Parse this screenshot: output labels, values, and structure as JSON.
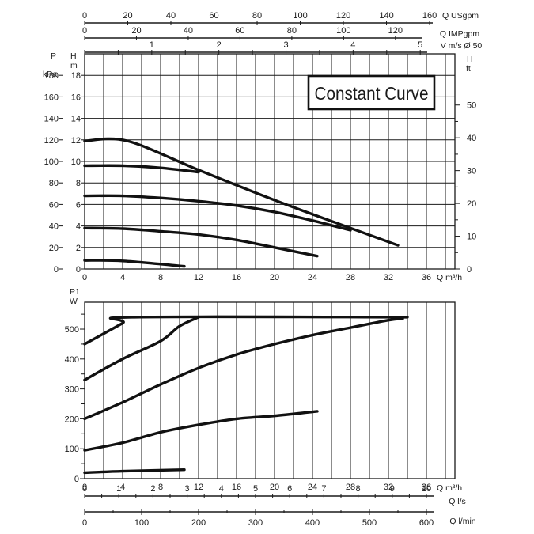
{
  "chart_data": [
    {
      "type": "line",
      "title": "Constant Curve",
      "xlabel": "Q m³/h",
      "x_ticks": [
        "0",
        "4",
        "8",
        "12",
        "16",
        "20",
        "24",
        "28",
        "32",
        "36"
      ],
      "xlim": [
        0,
        39
      ],
      "left_axes": [
        {
          "label_top": "P",
          "label_unit": "kPa",
          "ticks": [
            "0",
            "20",
            "40",
            "60",
            "80",
            "100",
            "120",
            "140",
            "160",
            "180"
          ]
        },
        {
          "label_top": "H",
          "label_unit": "m",
          "ticks": [
            "0",
            "2",
            "4",
            "6",
            "8",
            "10",
            "12",
            "14",
            "16",
            "18"
          ]
        }
      ],
      "right_axis": {
        "label_top": "H",
        "label_unit": "ft",
        "ticks": [
          "0",
          "10",
          "20",
          "30",
          "40",
          "50"
        ]
      },
      "ylabel": "H m",
      "ylim": [
        0,
        20
      ],
      "top_axes": [
        {
          "label": "Q USgpm",
          "ticks": [
            "0",
            "20",
            "40",
            "60",
            "80",
            "100",
            "120",
            "140",
            "160"
          ]
        },
        {
          "label": "Q IMPgpm",
          "ticks": [
            "0",
            "20",
            "40",
            "60",
            "80",
            "100",
            "120"
          ]
        },
        {
          "label": "V m/s Ø 50",
          "ticks": [
            "1",
            "2",
            "3",
            "4",
            "5"
          ]
        }
      ],
      "series": [
        {
          "x": [
            0,
            4,
            10.5
          ],
          "y": [
            0.8,
            0.75,
            0.25
          ]
        },
        {
          "x": [
            0,
            4,
            8,
            12,
            16,
            20,
            24.5
          ],
          "y": [
            3.8,
            3.75,
            3.5,
            3.2,
            2.7,
            2.0,
            1.2
          ]
        },
        {
          "x": [
            0,
            4,
            8,
            12,
            16,
            20,
            24,
            28
          ],
          "y": [
            6.8,
            6.8,
            6.6,
            6.3,
            5.9,
            5.3,
            4.5,
            3.6
          ]
        },
        {
          "x": [
            0,
            4,
            8,
            12
          ],
          "y": [
            9.6,
            9.6,
            9.4,
            9.0
          ]
        },
        {
          "x": [
            0,
            4.5,
            12,
            20,
            28,
            33
          ],
          "y": [
            11.9,
            11.9,
            9.2,
            6.4,
            3.8,
            2.2
          ]
        }
      ]
    },
    {
      "type": "line",
      "xlabel": "Q m³/h",
      "x_ticks": [
        "0",
        "4",
        "8",
        "12",
        "16",
        "20",
        "24",
        "28",
        "32",
        "36"
      ],
      "xlim": [
        0,
        39
      ],
      "ylabel_top": "P1",
      "ylabel_unit": "W",
      "y_ticks": [
        "0",
        "100",
        "200",
        "300",
        "400",
        "500"
      ],
      "ylim": [
        0,
        590
      ],
      "bottom_axes": [
        {
          "label": "Q l/s",
          "ticks": [
            "0",
            "1",
            "2",
            "3",
            "4",
            "5",
            "6",
            "7",
            "8",
            "9",
            "10"
          ]
        },
        {
          "label": "Q l/min",
          "ticks": [
            "0",
            "100",
            "200",
            "300",
            "400",
            "500",
            "600"
          ]
        }
      ],
      "series": [
        {
          "x": [
            0,
            4,
            10.5
          ],
          "y": [
            20,
            25,
            30
          ]
        },
        {
          "x": [
            0,
            4,
            8,
            12,
            16,
            20,
            24.5
          ],
          "y": [
            95,
            120,
            155,
            180,
            200,
            210,
            225
          ]
        },
        {
          "x": [
            0,
            4,
            8,
            12,
            16,
            20,
            24,
            28,
            32,
            33.5
          ],
          "y": [
            200,
            255,
            315,
            370,
            415,
            450,
            480,
            505,
            530,
            535
          ]
        },
        {
          "x": [
            0,
            4,
            8,
            10,
            12
          ],
          "y": [
            330,
            400,
            460,
            510,
            540
          ]
        },
        {
          "x": [
            0,
            4,
            5,
            34
          ],
          "y": [
            450,
            520,
            540,
            540
          ]
        }
      ]
    }
  ]
}
